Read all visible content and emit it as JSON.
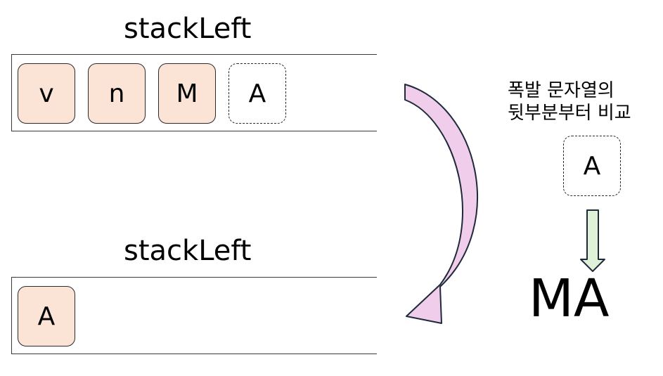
{
  "top_stack": {
    "title": "stackLeft",
    "items": [
      {
        "label": "v"
      },
      {
        "label": "n"
      },
      {
        "label": "M"
      },
      {
        "label": "A"
      }
    ]
  },
  "bottom_stack": {
    "title": "stackLeft",
    "items": [
      {
        "label": "A"
      }
    ]
  },
  "note": {
    "line1": "폭발 문자열의",
    "line2": "뒷부분부터 비교"
  },
  "compare_char": "A",
  "result": "MA",
  "colors": {
    "cell_fill": "#fbe3d6",
    "curved_arrow_fill": "#f0cdea",
    "down_arrow_fill": "#dff2d8",
    "outline": "#2a2a2a"
  }
}
